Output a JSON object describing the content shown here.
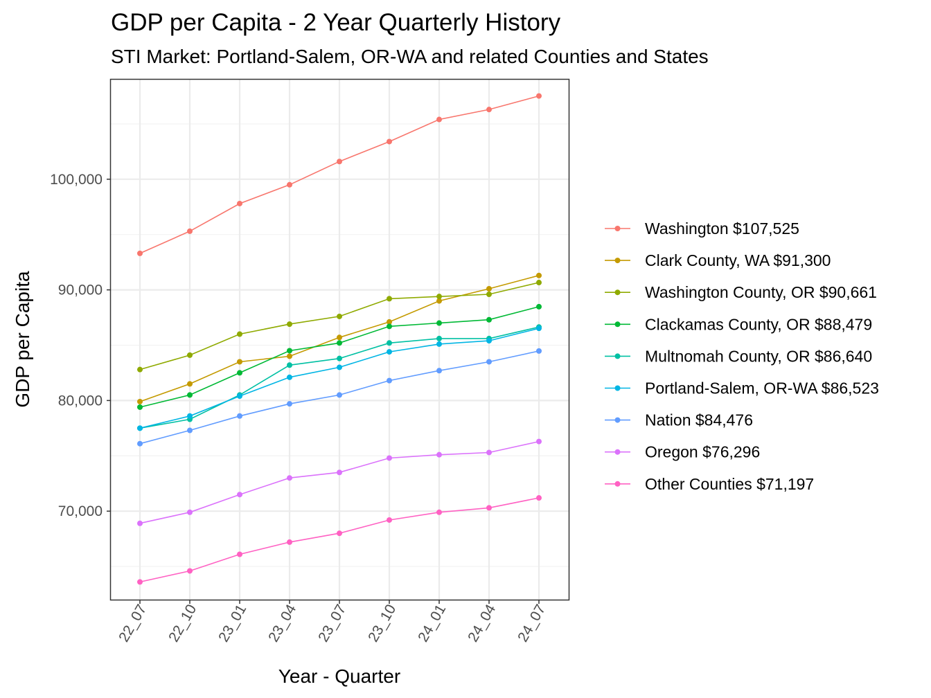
{
  "chart_data": {
    "type": "line",
    "title": "GDP per Capita - 2 Year Quarterly History",
    "subtitle": "STI Market: Portland-Salem, OR-WA and related Counties and States",
    "xlabel": "Year - Quarter",
    "ylabel": "GDP per Capita",
    "categories": [
      "22_07",
      "22_10",
      "23_01",
      "23_04",
      "23_07",
      "23_10",
      "24_01",
      "24_04",
      "24_07"
    ],
    "ylim": [
      62000,
      109000
    ],
    "yticks": [
      70000,
      80000,
      90000,
      100000
    ],
    "ytick_labels": [
      "70,000",
      "80,000",
      "90,000",
      "100,000"
    ],
    "grid": true,
    "legend_position": "right",
    "series": [
      {
        "name": "Washington $107,525",
        "color": "#F8766D",
        "values": [
          93300,
          95300,
          97800,
          99500,
          101600,
          103400,
          105400,
          106300,
          107525
        ]
      },
      {
        "name": "Clark County, WA $91,300",
        "color": "#C49A00",
        "values": [
          79900,
          81500,
          83500,
          84000,
          85700,
          87100,
          89000,
          90100,
          91300
        ]
      },
      {
        "name": "Washington County, OR $90,661",
        "color": "#8FAA00",
        "values": [
          82800,
          84100,
          86000,
          86900,
          87600,
          89200,
          89400,
          89600,
          90661
        ]
      },
      {
        "name": "Clackamas County, OR $88,479",
        "color": "#00B935",
        "values": [
          79400,
          80500,
          82500,
          84500,
          85200,
          86700,
          87000,
          87300,
          88479
        ]
      },
      {
        "name": "Multnomah County, OR $86,640",
        "color": "#00C0A3",
        "values": [
          77500,
          78300,
          80500,
          83200,
          83800,
          85200,
          85600,
          85600,
          86640
        ]
      },
      {
        "name": "Portland-Salem, OR-WA $86,523",
        "color": "#00B5E4",
        "values": [
          77500,
          78600,
          80400,
          82100,
          83000,
          84400,
          85100,
          85400,
          86523
        ]
      },
      {
        "name": "Nation $84,476",
        "color": "#619CFF",
        "values": [
          76100,
          77300,
          78600,
          79700,
          80500,
          81800,
          82700,
          83500,
          84476
        ]
      },
      {
        "name": "Oregon $76,296",
        "color": "#DB72FB",
        "values": [
          68900,
          69900,
          71500,
          73000,
          73500,
          74800,
          75100,
          75300,
          76296
        ]
      },
      {
        "name": "Other Counties $71,197",
        "color": "#FF61C3",
        "values": [
          63600,
          64600,
          66100,
          67200,
          68000,
          69200,
          69900,
          70300,
          71197
        ]
      }
    ]
  }
}
